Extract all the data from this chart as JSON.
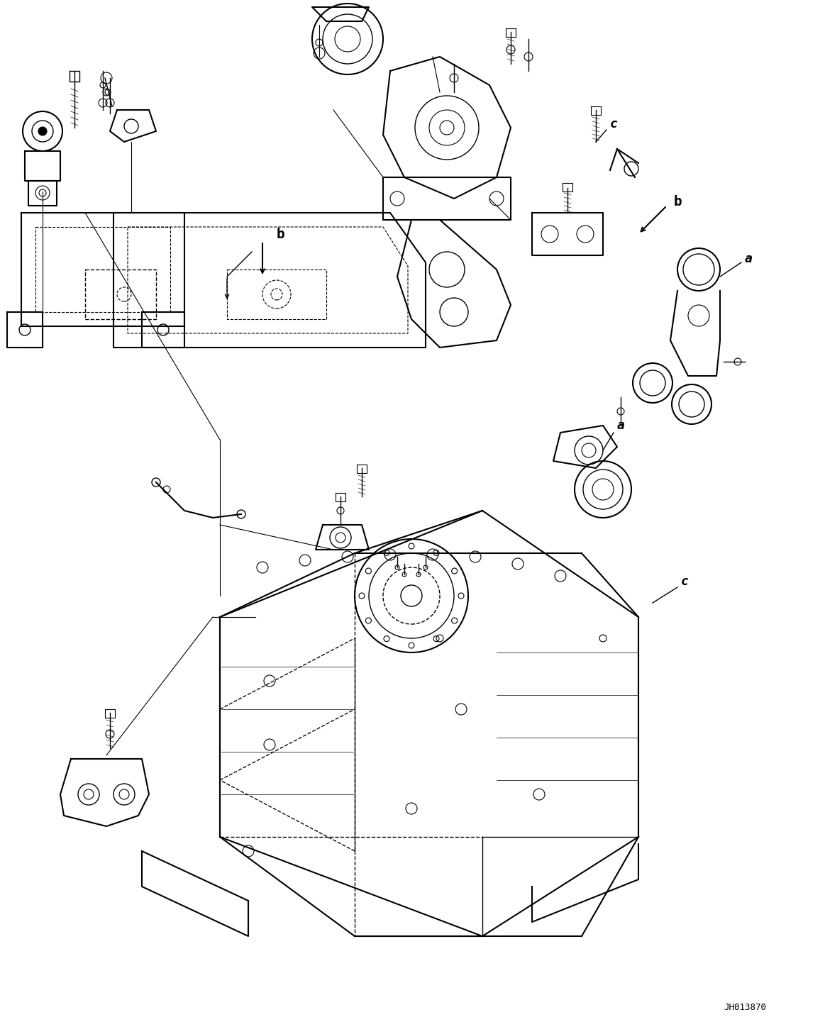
{
  "title": "",
  "background_color": "#ffffff",
  "line_color": "#000000",
  "label_a": "a",
  "label_b": "b",
  "label_c": "c",
  "code": "JH013870",
  "figsize": [
    11.63,
    14.41
  ],
  "dpi": 100
}
